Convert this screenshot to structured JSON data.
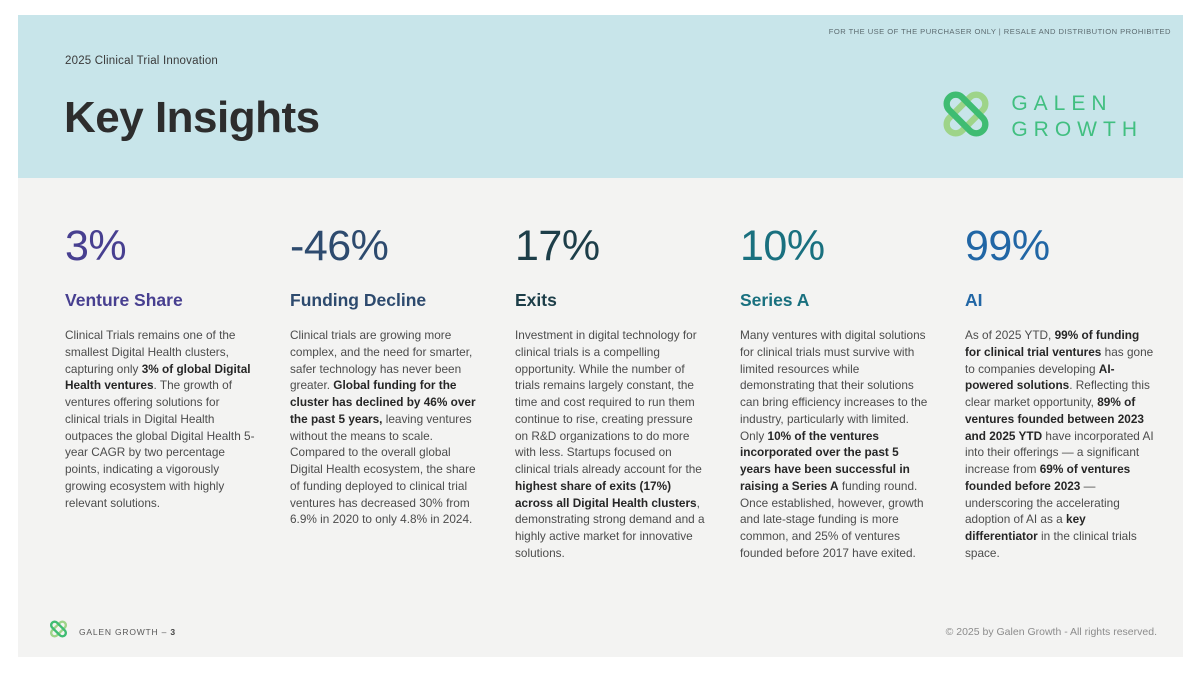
{
  "page": {
    "disclaimer": "FOR THE USE OF THE PURCHASER ONLY | RESALE AND DISTRIBUTION PROHIBITED",
    "eyebrow": "2025 Clinical Trial Innovation",
    "title": "Key Insights",
    "logo_line1": "GALEN",
    "logo_line2": "GROWTH"
  },
  "colors": {
    "header_bg": "#c8e5ea",
    "body_bg": "#f3f3f2",
    "logo_green_light": "#9ed489",
    "logo_green_dark": "#3fbc72",
    "logo_text_green": "#41bf80"
  },
  "stats": [
    {
      "value": "3%",
      "label": "Venture Share",
      "color": "#473f90",
      "body": [
        {
          "t": "Clinical Trials remains one of the smallest Digital Health clusters, capturing only "
        },
        {
          "t": "3% of global Digital Health ventures",
          "b": true
        },
        {
          "t": ". The growth of ventures offering solutions for clinical trials in Digital Health outpaces the global Digital Health 5-year CAGR by two percentage points, indicating a vigorously growing ecosystem with highly relevant solutions."
        }
      ]
    },
    {
      "value": "-46%",
      "label": "Funding Decline",
      "color": "#2d4a6e",
      "body": [
        {
          "t": "Clinical trials are growing more complex, and the need for smarter, safer technology has never been greater. "
        },
        {
          "t": "Global funding for the cluster has declined by 46% over the past 5 years,",
          "b": true
        },
        {
          "t": " leaving ventures without the means to scale. Compared to the overall global Digital Health ecosystem, the share of funding deployed to clinical trial ventures has decreased 30% from 6.9% in 2020 to only 4.8% in 2024."
        }
      ]
    },
    {
      "value": "17%",
      "label": "Exits",
      "color": "#1d3e49",
      "body": [
        {
          "t": "Investment in digital technology for clinical trials is a compelling opportunity. While the number of trials remains largely constant, the time and cost required to run them continue to rise, creating pressure on R&D organizations to do more with less. Startups focused on clinical trials already account for the "
        },
        {
          "t": "highest share of exits (17%) across all Digital Health clusters",
          "b": true
        },
        {
          "t": ", demonstrating strong demand and a highly active market for innovative solutions."
        }
      ]
    },
    {
      "value": "10%",
      "label": "Series A",
      "color": "#19707f",
      "body": [
        {
          "t": "Many ventures with digital solutions for clinical trials must survive with limited resources while demonstrating that their solutions can bring efficiency increases to the industry, particularly with limited. Only "
        },
        {
          "t": "10% of the ventures incorporated over the past 5 years have been successful in raising a Series A",
          "b": true
        },
        {
          "t": " funding round. Once established, however, growth and late-stage funding is more common, and 25% of ventures founded before 2017 have exited."
        }
      ]
    },
    {
      "value": "99%",
      "label": "AI",
      "color": "#2166a5",
      "body": [
        {
          "t": "As of 2025 YTD, "
        },
        {
          "t": "99% of funding for clinical trial ventures",
          "b": true
        },
        {
          "t": " has gone to companies developing "
        },
        {
          "t": "AI-powered solutions",
          "b": true
        },
        {
          "t": ". Reflecting this clear market opportunity, "
        },
        {
          "t": "89% of ventures founded between 2023 and 2025 YTD",
          "b": true
        },
        {
          "t": " have incorporated AI into their offerings — a significant increase from "
        },
        {
          "t": "69% of ventures founded before 2023",
          "b": true
        },
        {
          "t": " — underscoring the accelerating adoption of AI as a "
        },
        {
          "t": "key differentiator",
          "b": true
        },
        {
          "t": " in the clinical trials space."
        }
      ]
    }
  ],
  "footer": {
    "left": [
      {
        "t": "GALEN GROWTH – "
      },
      {
        "t": "3",
        "b": true
      }
    ],
    "right": "© 2025 by Galen Growth  - All rights reserved."
  }
}
